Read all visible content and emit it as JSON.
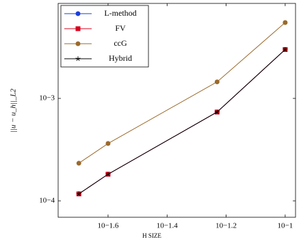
{
  "chart_data": {
    "type": "line",
    "x_label": "H SIZE",
    "y_label": "||u − u_h||_L2",
    "x": [
      0.02,
      0.02512,
      0.0588,
      0.1
    ],
    "series": [
      {
        "name": "L-method",
        "color": "#1a3fd9",
        "marker": "circle",
        "values": [
          0.000117,
          0.000182,
          0.000736,
          0.003
        ]
      },
      {
        "name": "FV",
        "color": "#d7001b",
        "marker": "square",
        "values": [
          0.000117,
          0.000182,
          0.000736,
          0.003
        ]
      },
      {
        "name": "ccG",
        "color": "#9a6a2c",
        "marker": "circle",
        "values": [
          0.000233,
          0.000363,
          0.00145,
          0.0055
        ]
      },
      {
        "name": "Hybrid",
        "color": "#000000",
        "marker": "star",
        "values": [
          0.000117,
          0.000182,
          0.000736,
          0.003
        ]
      }
    ],
    "xlim": [
      0.01702,
      0.1084
    ],
    "ylim": [
      6.92e-05,
      0.00845
    ],
    "xticks": [
      {
        "value": 0.02512,
        "label": "10−1.6"
      },
      {
        "value": 0.03981,
        "label": "10−1.4"
      },
      {
        "value": 0.0631,
        "label": "10−1.2"
      },
      {
        "value": 0.1,
        "label": "10−1"
      }
    ],
    "yticks": [
      {
        "value": 0.0001,
        "label": "10−4"
      },
      {
        "value": 0.001,
        "label": "10−3"
      }
    ],
    "log_x": true,
    "log_y": true,
    "legend": "upper-left"
  }
}
